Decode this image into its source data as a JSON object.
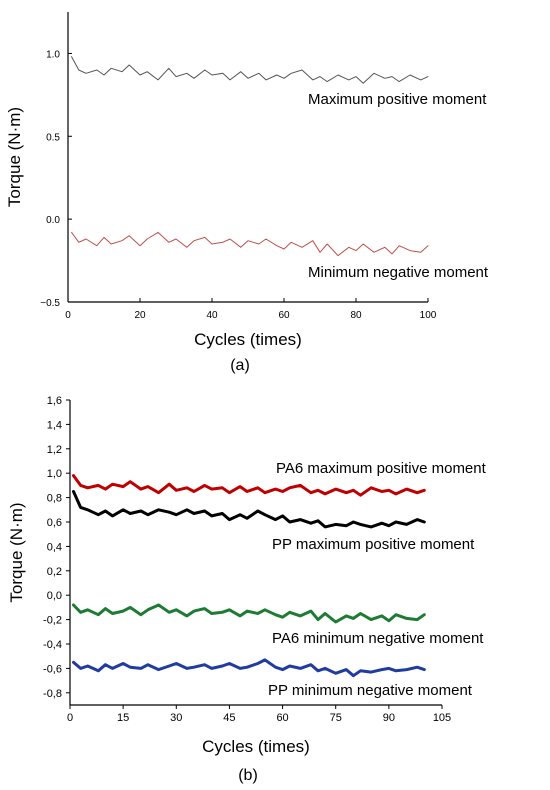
{
  "chart_data": [
    {
      "type": "line",
      "panel_label": "(a)",
      "xlabel": "Cycles (times)",
      "ylabel": "Torque (N·m)",
      "xlim": [
        0,
        100
      ],
      "ylim": [
        -0.5,
        1.25
      ],
      "xticks": [
        0,
        20,
        40,
        60,
        80,
        100
      ],
      "xtick_labels": [
        "0",
        "20",
        "40",
        "60",
        "80",
        "100"
      ],
      "yticks": [
        -0.5,
        0.0,
        0.5,
        1.0
      ],
      "ytick_labels": [
        "−0.5",
        "0.0",
        "0.5",
        "1.0"
      ],
      "grid": false,
      "series": [
        {
          "name": "Maximum positive moment",
          "color": "#555555",
          "x": [
            1,
            3,
            5,
            8,
            10,
            12,
            15,
            17,
            20,
            22,
            25,
            28,
            30,
            33,
            35,
            38,
            40,
            43,
            45,
            48,
            50,
            53,
            55,
            58,
            60,
            62,
            65,
            68,
            70,
            72,
            75,
            78,
            80,
            82,
            85,
            88,
            90,
            92,
            95,
            98,
            100
          ],
          "y": [
            0.98,
            0.9,
            0.88,
            0.9,
            0.87,
            0.91,
            0.89,
            0.93,
            0.87,
            0.89,
            0.84,
            0.91,
            0.86,
            0.88,
            0.85,
            0.9,
            0.87,
            0.88,
            0.84,
            0.89,
            0.85,
            0.88,
            0.84,
            0.87,
            0.85,
            0.88,
            0.9,
            0.84,
            0.86,
            0.83,
            0.87,
            0.84,
            0.86,
            0.82,
            0.88,
            0.85,
            0.86,
            0.83,
            0.87,
            0.84,
            0.86
          ]
        },
        {
          "name": "Minimum negative moment",
          "color": "#c0504d",
          "x": [
            1,
            3,
            5,
            8,
            10,
            12,
            15,
            17,
            20,
            22,
            25,
            28,
            30,
            33,
            35,
            38,
            40,
            43,
            45,
            48,
            50,
            53,
            55,
            58,
            60,
            62,
            65,
            68,
            70,
            72,
            75,
            78,
            80,
            82,
            85,
            88,
            90,
            92,
            95,
            98,
            100
          ],
          "y": [
            -0.08,
            -0.14,
            -0.12,
            -0.16,
            -0.11,
            -0.15,
            -0.13,
            -0.1,
            -0.16,
            -0.12,
            -0.08,
            -0.14,
            -0.12,
            -0.17,
            -0.13,
            -0.11,
            -0.15,
            -0.14,
            -0.12,
            -0.17,
            -0.13,
            -0.15,
            -0.12,
            -0.16,
            -0.18,
            -0.14,
            -0.17,
            -0.13,
            -0.2,
            -0.15,
            -0.22,
            -0.17,
            -0.19,
            -0.15,
            -0.2,
            -0.17,
            -0.21,
            -0.16,
            -0.19,
            -0.2,
            -0.16
          ]
        }
      ]
    },
    {
      "type": "line",
      "panel_label": "(b)",
      "xlabel": "Cycles (times)",
      "ylabel": "Torque (N·m)",
      "xlim": [
        0,
        105
      ],
      "ylim": [
        -0.9,
        1.6
      ],
      "xticks": [
        0,
        15,
        30,
        45,
        60,
        75,
        90,
        105
      ],
      "xtick_labels": [
        "0",
        "15",
        "30",
        "45",
        "60",
        "75",
        "90",
        "105"
      ],
      "yticks": [
        -0.8,
        -0.6,
        -0.4,
        -0.2,
        0.0,
        0.2,
        0.4,
        0.6,
        0.8,
        1.0,
        1.2,
        1.4,
        1.6
      ],
      "ytick_labels": [
        "-0,8",
        "-0,6",
        "-0,4",
        "-0,2",
        "0,0",
        "0,2",
        "0,4",
        "0,6",
        "0,8",
        "1,0",
        "1,2",
        "1,4",
        "1,6"
      ],
      "grid": false,
      "series": [
        {
          "name": "PA6 maximum positive moment",
          "color": "#c00000",
          "x": [
            1,
            3,
            5,
            8,
            10,
            12,
            15,
            17,
            20,
            22,
            25,
            28,
            30,
            33,
            35,
            38,
            40,
            43,
            45,
            48,
            50,
            53,
            55,
            58,
            60,
            62,
            65,
            68,
            70,
            72,
            75,
            78,
            80,
            82,
            85,
            88,
            90,
            92,
            95,
            98,
            100
          ],
          "y": [
            0.98,
            0.9,
            0.88,
            0.9,
            0.87,
            0.91,
            0.89,
            0.93,
            0.87,
            0.89,
            0.84,
            0.91,
            0.86,
            0.88,
            0.85,
            0.9,
            0.87,
            0.88,
            0.84,
            0.89,
            0.85,
            0.88,
            0.84,
            0.87,
            0.85,
            0.88,
            0.9,
            0.84,
            0.86,
            0.83,
            0.87,
            0.84,
            0.86,
            0.82,
            0.88,
            0.85,
            0.86,
            0.83,
            0.87,
            0.84,
            0.86
          ]
        },
        {
          "name": "PP maximum positive moment",
          "color": "#000000",
          "x": [
            1,
            3,
            5,
            8,
            10,
            12,
            15,
            17,
            20,
            22,
            25,
            28,
            30,
            33,
            35,
            38,
            40,
            43,
            45,
            48,
            50,
            53,
            55,
            58,
            60,
            62,
            65,
            68,
            70,
            72,
            75,
            78,
            80,
            82,
            85,
            88,
            90,
            92,
            95,
            98,
            100
          ],
          "y": [
            0.85,
            0.72,
            0.7,
            0.66,
            0.69,
            0.65,
            0.7,
            0.67,
            0.69,
            0.66,
            0.7,
            0.68,
            0.66,
            0.7,
            0.67,
            0.69,
            0.65,
            0.67,
            0.62,
            0.66,
            0.63,
            0.69,
            0.66,
            0.62,
            0.65,
            0.6,
            0.62,
            0.59,
            0.61,
            0.56,
            0.58,
            0.57,
            0.6,
            0.58,
            0.56,
            0.59,
            0.57,
            0.6,
            0.58,
            0.62,
            0.6
          ]
        },
        {
          "name": "PA6 minimum negative moment",
          "color": "#1e7b34",
          "x": [
            1,
            3,
            5,
            8,
            10,
            12,
            15,
            17,
            20,
            22,
            25,
            28,
            30,
            33,
            35,
            38,
            40,
            43,
            45,
            48,
            50,
            53,
            55,
            58,
            60,
            62,
            65,
            68,
            70,
            72,
            75,
            78,
            80,
            82,
            85,
            88,
            90,
            92,
            95,
            98,
            100
          ],
          "y": [
            -0.08,
            -0.14,
            -0.12,
            -0.16,
            -0.11,
            -0.15,
            -0.13,
            -0.1,
            -0.16,
            -0.12,
            -0.08,
            -0.14,
            -0.12,
            -0.17,
            -0.13,
            -0.11,
            -0.15,
            -0.14,
            -0.12,
            -0.17,
            -0.13,
            -0.15,
            -0.12,
            -0.16,
            -0.18,
            -0.14,
            -0.17,
            -0.13,
            -0.2,
            -0.15,
            -0.22,
            -0.17,
            -0.19,
            -0.15,
            -0.2,
            -0.17,
            -0.21,
            -0.16,
            -0.19,
            -0.2,
            -0.16
          ]
        },
        {
          "name": "PP minimum negative moment",
          "color": "#1f3c9e",
          "x": [
            1,
            3,
            5,
            8,
            10,
            12,
            15,
            17,
            20,
            22,
            25,
            28,
            30,
            33,
            35,
            38,
            40,
            43,
            45,
            48,
            50,
            53,
            55,
            58,
            60,
            62,
            65,
            68,
            70,
            72,
            75,
            78,
            80,
            82,
            85,
            88,
            90,
            92,
            95,
            98,
            100
          ],
          "y": [
            -0.55,
            -0.6,
            -0.58,
            -0.62,
            -0.57,
            -0.6,
            -0.56,
            -0.59,
            -0.6,
            -0.57,
            -0.61,
            -0.58,
            -0.56,
            -0.6,
            -0.59,
            -0.57,
            -0.6,
            -0.58,
            -0.56,
            -0.6,
            -0.59,
            -0.56,
            -0.53,
            -0.59,
            -0.61,
            -0.58,
            -0.6,
            -0.57,
            -0.62,
            -0.6,
            -0.64,
            -0.61,
            -0.66,
            -0.62,
            -0.63,
            -0.61,
            -0.6,
            -0.62,
            -0.61,
            -0.59,
            -0.61
          ]
        }
      ]
    }
  ]
}
